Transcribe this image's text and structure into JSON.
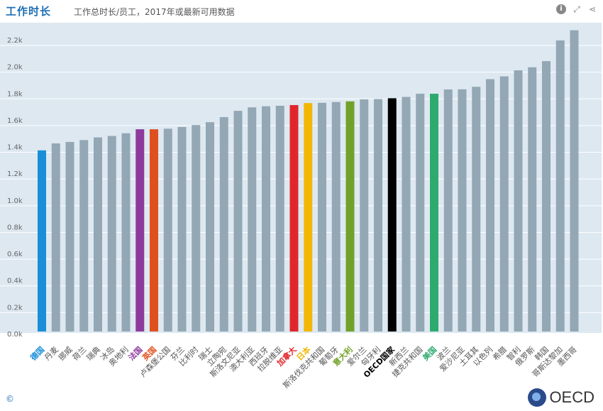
{
  "header": {
    "title": "工作时长",
    "subtitle": "工作总时长/员工，2017年或最新可用数据"
  },
  "icons": {
    "info": "info-icon",
    "expand": "expand-icon",
    "share": "share-icon"
  },
  "footer": {
    "copyright": "©",
    "logo_text": "OECD"
  },
  "colors": {
    "plot_bg": "#dde8f1",
    "grid": "#ffffff",
    "bar_default": "#93a7b5",
    "axis_text": "#666666"
  },
  "chart_data": {
    "type": "bar",
    "title": "工作时长",
    "subtitle": "工作总时长/员工，2017年或最新可用数据",
    "ylim": [
      0,
      2300
    ],
    "yticks": [
      0,
      200,
      400,
      600,
      800,
      1000,
      1200,
      1400,
      1600,
      1800,
      2000,
      2200
    ],
    "ytick_labels": [
      "0.0k",
      "0.2k",
      "0.4k",
      "0.6k",
      "0.8k",
      "1.0k",
      "1.2k",
      "1.4k",
      "1.6k",
      "1.8k",
      "2.0k",
      "2.2k"
    ],
    "grid": true,
    "categories": [
      "德国",
      "丹麦",
      "挪威",
      "荷兰",
      "瑞典",
      "冰岛",
      "奥地利",
      "法国",
      "英国",
      "卢森堡公国",
      "芬兰",
      "比利时",
      "瑞士",
      "立陶宛",
      "斯洛文尼亚",
      "澳大利亚",
      "西班牙",
      "拉脱维亚",
      "加拿大",
      "日本",
      "斯洛伐克共和国",
      "葡萄牙",
      "意大利",
      "爱尔兰",
      "匈牙利",
      "OECD国家",
      "新西兰",
      "捷克共和国",
      "美国",
      "波兰",
      "爱沙尼亚",
      "土耳其",
      "以色列",
      "希腊",
      "智利",
      "俄罗斯",
      "韩国",
      "哥斯达黎加",
      "墨西哥"
    ],
    "values": [
      1356,
      1408,
      1419,
      1433,
      1453,
      1464,
      1484,
      1514,
      1514,
      1518,
      1531,
      1545,
      1567,
      1605,
      1652,
      1678,
      1686,
      1690,
      1695,
      1710,
      1712,
      1718,
      1723,
      1738,
      1740,
      1746,
      1756,
      1780,
      1780,
      1812,
      1813,
      1832,
      1889,
      1910,
      1955,
      1978,
      2024,
      2179,
      2255
    ],
    "bar_colors": [
      "#1a8fd8",
      null,
      null,
      null,
      null,
      null,
      null,
      "#8e3a9d",
      "#e0501f",
      null,
      null,
      null,
      null,
      null,
      null,
      null,
      null,
      null,
      "#e1262b",
      "#f2b705",
      null,
      null,
      "#72a12a",
      null,
      null,
      "#000000",
      null,
      null,
      "#2daa6e",
      null,
      null,
      null,
      null,
      null,
      null,
      null,
      null,
      null,
      null
    ],
    "label_colors": [
      "#1a8fd8",
      null,
      null,
      null,
      null,
      null,
      null,
      "#8e3a9d",
      "#e0501f",
      null,
      null,
      null,
      null,
      null,
      null,
      null,
      null,
      null,
      "#e1262b",
      "#f2b705",
      null,
      null,
      "#72a12a",
      null,
      null,
      "#000000",
      null,
      null,
      "#2daa6e",
      null,
      null,
      null,
      null,
      null,
      null,
      null,
      null,
      null,
      null
    ]
  }
}
